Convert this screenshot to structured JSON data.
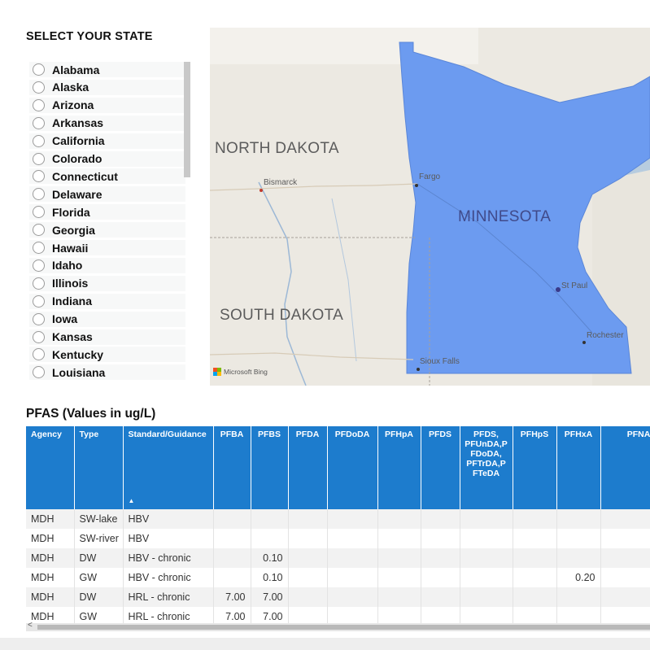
{
  "slicer": {
    "title": "SELECT YOUR STATE",
    "states": [
      "Alabama",
      "Alaska",
      "Arizona",
      "Arkansas",
      "California",
      "Colorado",
      "Connecticut",
      "Delaware",
      "Florida",
      "Georgia",
      "Hawaii",
      "Idaho",
      "Illinois",
      "Indiana",
      "Iowa",
      "Kansas",
      "Kentucky",
      "Louisiana"
    ]
  },
  "map": {
    "labels": {
      "north_dakota": "NORTH DAKOTA",
      "south_dakota": "SOUTH DAKOTA",
      "minnesota": "MINNESOTA"
    },
    "cities": {
      "bismarck": "Bismarck",
      "fargo": "Fargo",
      "st_paul": "St Paul",
      "rochester": "Rochester",
      "sioux_falls": "Sioux Falls"
    },
    "attribution": "Microsoft Bing",
    "highlight_color": "#6c9bf0",
    "base_color": "#ece9e2"
  },
  "table": {
    "title": "PFAS (Values in ug/L)",
    "header_color": "#1d7ccd",
    "columns": [
      "Agency",
      "Type",
      "Standard/Guidance",
      "PFBA",
      "PFBS",
      "PFDA",
      "PFDoDA",
      "PFHpA",
      "PFDS",
      "PFDS, PFUnDA,P FDoDA, PFTrDA,P FTeDA",
      "PFHpS",
      "PFHxA",
      "PFNA"
    ],
    "rows": [
      [
        "MDH",
        "SW-lake",
        "HBV",
        "",
        "",
        "",
        "",
        "",
        "",
        "",
        "",
        "",
        ""
      ],
      [
        "MDH",
        "SW-river",
        "HBV",
        "",
        "",
        "",
        "",
        "",
        "",
        "",
        "",
        "",
        ""
      ],
      [
        "MDH",
        "DW",
        "HBV - chronic",
        "",
        "0.10",
        "",
        "",
        "",
        "",
        "",
        "",
        "",
        ""
      ],
      [
        "MDH",
        "GW",
        "HBV - chronic",
        "",
        "0.10",
        "",
        "",
        "",
        "",
        "",
        "",
        "0.20",
        ""
      ],
      [
        "MDH",
        "DW",
        "HRL - chronic",
        "7.00",
        "7.00",
        "",
        "",
        "",
        "",
        "",
        "",
        "",
        ""
      ],
      [
        "MDH",
        "GW",
        "HRL - chronic",
        "7.00",
        "7.00",
        "",
        "",
        "",
        "",
        "",
        "",
        "",
        ""
      ]
    ],
    "scroll_left_glyph": "<"
  }
}
